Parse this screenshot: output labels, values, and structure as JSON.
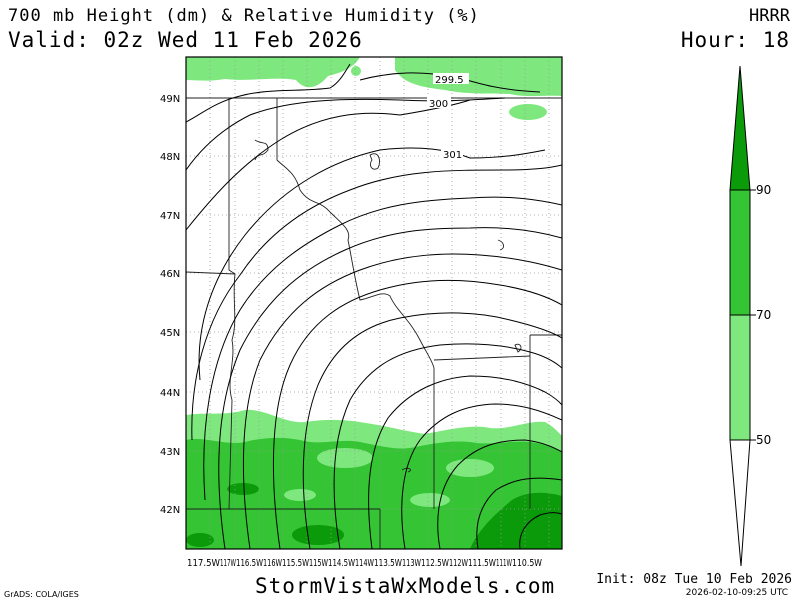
{
  "header": {
    "title": "700 mb Height (dm) & Relative Humidity (%)",
    "valid": "Valid: 02z Wed 11 Feb 2026",
    "model": "HRRR",
    "hour": "Hour: 18"
  },
  "footer": {
    "site": "StormVistaWxModels.com",
    "grads": "GrADS: COLA/IGES",
    "init": "Init: 08z Tue 10 Feb 2026",
    "stamp": "2026-02-10-09:25 UTC"
  },
  "map": {
    "lat_labels": [
      "49N",
      "48N",
      "47N",
      "46N",
      "45N",
      "44N",
      "43N",
      "42N"
    ],
    "lon_labels": [
      "117.5W",
      "117W",
      "116.5W",
      "116W",
      "115.5W",
      "115W",
      "114.5W",
      "114W",
      "113.5W",
      "113W",
      "112.5W",
      "112W",
      "111.5W",
      "111W",
      "110.5W"
    ],
    "contour_labels": [
      "299.5",
      "300",
      "301"
    ]
  },
  "legend": {
    "labels": [
      "90",
      "70",
      "50"
    ],
    "colors": {
      "rh_50_70": "#7ee87e",
      "rh_70_90": "#34c434",
      "rh_90_up": "#0a9a0a"
    }
  }
}
